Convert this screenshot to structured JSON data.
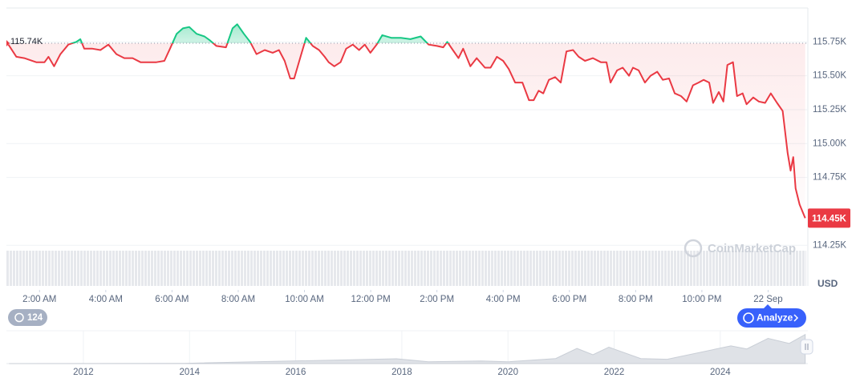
{
  "chart_data": [
    {
      "type": "line",
      "x": [
        1.06,
        1.3,
        1.54,
        1.9,
        2.15,
        2.27,
        2.44,
        2.63,
        2.87,
        3.11,
        3.23,
        3.35,
        3.6,
        3.84,
        4.08,
        4.32,
        4.56,
        4.81,
        5.05,
        5.29,
        5.53,
        5.77,
        5.94,
        6.14,
        6.33,
        6.52,
        6.74,
        6.98,
        7.15,
        7.34,
        7.63,
        7.83,
        7.97,
        8.17,
        8.36,
        8.55,
        8.8,
        9.04,
        9.23,
        9.4,
        9.57,
        9.69,
        9.88,
        10.05,
        10.25,
        10.44,
        10.61,
        10.73,
        10.9,
        11.09,
        11.26,
        11.46,
        11.65,
        11.82,
        11.99,
        12.18,
        12.35,
        12.62,
        12.91,
        13.2,
        13.51,
        13.75,
        14.0,
        14.19,
        14.31,
        14.48,
        14.65,
        14.79,
        15.01,
        15.2,
        15.45,
        15.62,
        15.81,
        16.0,
        16.17,
        16.36,
        16.58,
        16.78,
        16.92,
        17.07,
        17.21,
        17.38,
        17.57,
        17.74,
        17.91,
        18.11,
        18.28,
        18.47,
        18.71,
        18.95,
        19.12,
        19.24,
        19.44,
        19.61,
        19.8,
        19.92,
        20.09,
        20.28,
        20.45,
        20.65,
        20.82,
        21.01,
        21.18,
        21.37,
        21.54,
        21.73,
        21.9,
        22.05,
        22.22,
        22.34,
        22.51,
        22.65,
        22.77,
        22.94,
        23.06,
        23.23,
        23.35,
        23.55,
        23.72,
        23.91,
        24.08,
        24.27,
        24.44,
        24.59,
        24.68,
        24.76,
        24.83,
        24.95,
        25.12
      ],
      "values": [
        115.73,
        115.64,
        115.63,
        115.6,
        115.6,
        115.64,
        115.57,
        115.66,
        115.73,
        115.75,
        115.77,
        115.7,
        115.7,
        115.69,
        115.73,
        115.66,
        115.63,
        115.63,
        115.6,
        115.6,
        115.6,
        115.61,
        115.7,
        115.81,
        115.85,
        115.86,
        115.81,
        115.79,
        115.76,
        115.72,
        115.71,
        115.85,
        115.88,
        115.81,
        115.75,
        115.66,
        115.69,
        115.67,
        115.69,
        115.61,
        115.48,
        115.48,
        115.64,
        115.78,
        115.72,
        115.69,
        115.64,
        115.6,
        115.57,
        115.6,
        115.7,
        115.73,
        115.69,
        115.73,
        115.67,
        115.73,
        115.8,
        115.78,
        115.78,
        115.77,
        115.79,
        115.73,
        115.72,
        115.71,
        115.75,
        115.69,
        115.63,
        115.7,
        115.57,
        115.63,
        115.56,
        115.56,
        115.64,
        115.61,
        115.55,
        115.45,
        115.45,
        115.32,
        115.32,
        115.39,
        115.37,
        115.47,
        115.49,
        115.45,
        115.68,
        115.69,
        115.64,
        115.61,
        115.63,
        115.6,
        115.6,
        115.45,
        115.54,
        115.56,
        115.5,
        115.56,
        115.54,
        115.45,
        115.5,
        115.53,
        115.47,
        115.48,
        115.37,
        115.35,
        115.31,
        115.43,
        115.45,
        115.47,
        115.45,
        115.3,
        115.38,
        115.31,
        115.58,
        115.6,
        115.35,
        115.37,
        115.29,
        115.34,
        115.31,
        115.3,
        115.37,
        115.3,
        115.24,
        114.93,
        114.8,
        114.9,
        114.67,
        114.55,
        114.45
      ],
      "up_color": "#16c784",
      "down_color": "#ea3943",
      "xlim": [
        1.0,
        25.2
      ],
      "xticks": [
        {
          "value": 2,
          "label": "2:00 AM"
        },
        {
          "value": 4,
          "label": "4:00 AM"
        },
        {
          "value": 6,
          "label": "6:00 AM"
        },
        {
          "value": 8,
          "label": "8:00 AM"
        },
        {
          "value": 10,
          "label": "10:00 AM"
        },
        {
          "value": 12,
          "label": "12:00 PM"
        },
        {
          "value": 14,
          "label": "2:00 PM"
        },
        {
          "value": 16,
          "label": "4:00 PM"
        },
        {
          "value": 18,
          "label": "6:00 PM"
        },
        {
          "value": 20,
          "label": "8:00 PM"
        },
        {
          "value": 22,
          "label": "10:00 PM"
        },
        {
          "value": 24,
          "label": "22 Sep"
        }
      ],
      "ylim": [
        113.95,
        116.0
      ],
      "yticks": [
        {
          "value": 114.25,
          "label": "114.25K"
        },
        {
          "value": 114.75,
          "label": "114.75K"
        },
        {
          "value": 115.0,
          "label": "115.00K"
        },
        {
          "value": 115.25,
          "label": "115.25K"
        },
        {
          "value": 115.5,
          "label": "115.50K"
        },
        {
          "value": 115.75,
          "label": "115.75K"
        }
      ],
      "grid": true,
      "reference": {
        "value": 115.74,
        "label": "115.74K"
      },
      "current": {
        "value": 114.45,
        "label": "114.45K"
      },
      "y_unit": "USD"
    },
    {
      "type": "area",
      "x": [
        2010.6,
        2013.9,
        2017.9,
        2018.5,
        2019.5,
        2020.0,
        2020.9,
        2021.3,
        2021.6,
        2021.9,
        2022.5,
        2023.0,
        2024.2,
        2024.5,
        2024.9,
        2025.3,
        2025.6
      ],
      "values": [
        0,
        1,
        19,
        7,
        10,
        7,
        20,
        60,
        35,
        65,
        20,
        17,
        70,
        58,
        100,
        80,
        115
      ],
      "xlim": [
        2010.55,
        2025.65
      ],
      "ylim": [
        0,
        130
      ],
      "xticks": [
        2012,
        2014,
        2016,
        2018,
        2020,
        2022,
        2024
      ],
      "color": "#dfe2e7"
    }
  ],
  "ui": {
    "history_count": 124,
    "analyze": "Analyze",
    "watermark": "CoinMarketCap"
  }
}
